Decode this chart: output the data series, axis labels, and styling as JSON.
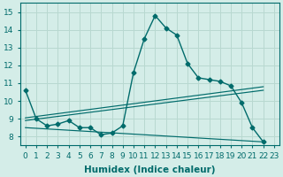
{
  "xlabel": "Humidex (Indice chaleur)",
  "background_color": "#d4ede8",
  "grid_color": "#b8d8d0",
  "line_color": "#006b6b",
  "xlim": [
    -0.5,
    23.5
  ],
  "ylim": [
    7.5,
    15.5
  ],
  "xticks": [
    0,
    1,
    2,
    3,
    4,
    5,
    6,
    7,
    8,
    9,
    10,
    11,
    12,
    13,
    14,
    15,
    16,
    17,
    18,
    19,
    20,
    21,
    22,
    23
  ],
  "yticks": [
    8,
    9,
    10,
    11,
    12,
    13,
    14,
    15
  ],
  "main_x": [
    0,
    1,
    2,
    3,
    4,
    5,
    6,
    7,
    8,
    9,
    10,
    11,
    12,
    13,
    14,
    15,
    16,
    17,
    18,
    19,
    20,
    21,
    22
  ],
  "main_y": [
    10.6,
    9.0,
    8.6,
    8.7,
    8.9,
    8.5,
    8.5,
    8.1,
    8.2,
    8.6,
    11.6,
    13.5,
    14.8,
    14.1,
    13.7,
    12.1,
    11.3,
    11.2,
    11.1,
    10.85,
    9.9,
    8.5,
    7.7
  ],
  "line1_x": [
    0,
    22
  ],
  "line1_y": [
    9.05,
    10.8
  ],
  "line2_x": [
    0,
    22
  ],
  "line2_y": [
    8.9,
    10.6
  ],
  "line3_x": [
    0,
    22
  ],
  "line3_y": [
    8.5,
    7.7
  ],
  "tick_fontsize": 6.5,
  "label_fontsize": 7.5
}
